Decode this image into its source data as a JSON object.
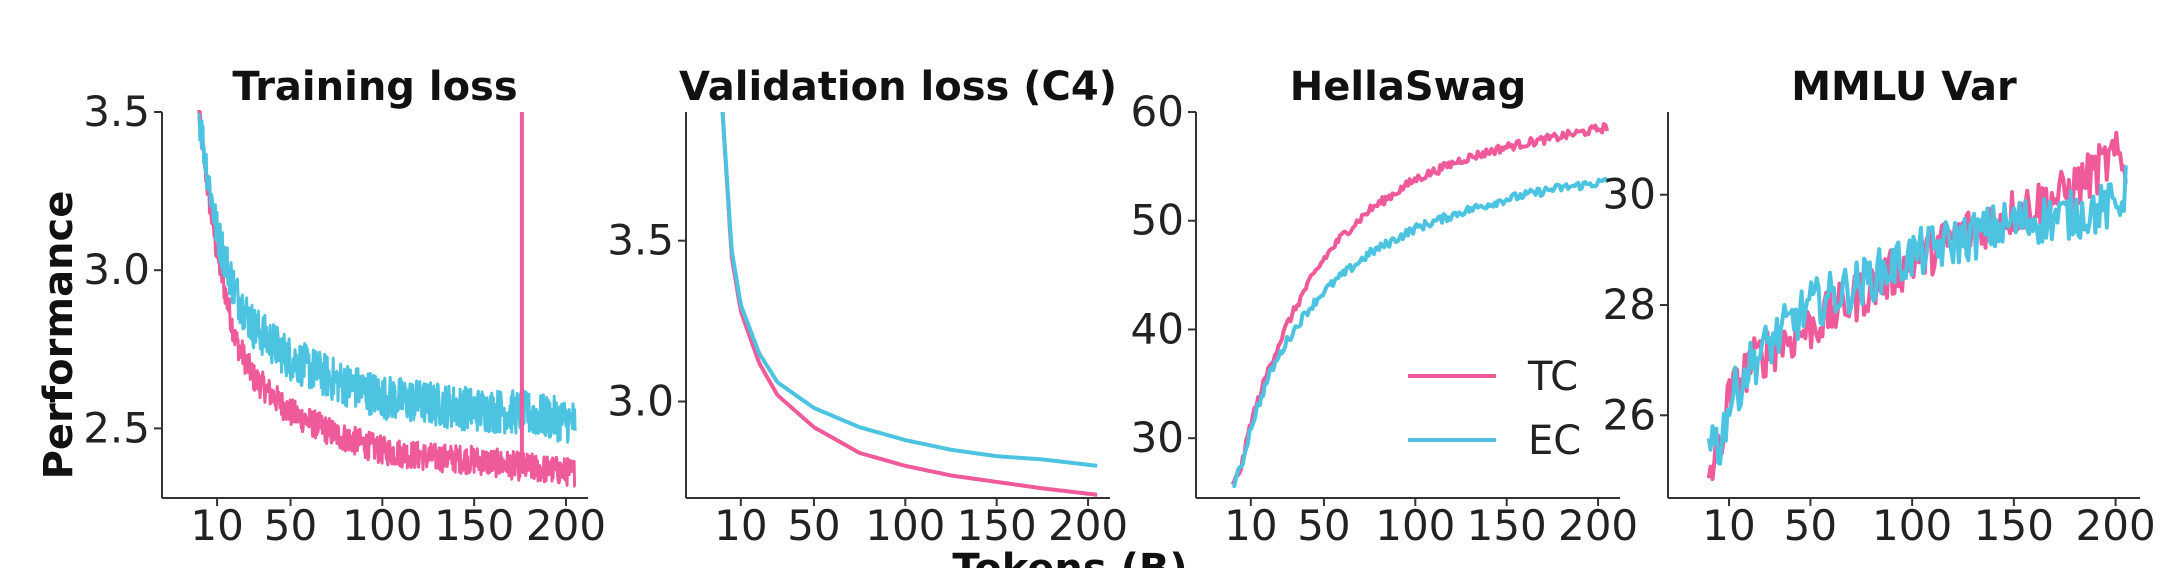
{
  "figure": {
    "ylabel": "Performance",
    "xlabel": "Tokens (B)"
  },
  "legend": [
    {
      "name": "TC",
      "color": "#ef5a9b"
    },
    {
      "name": "EC",
      "color": "#4cc3e0"
    }
  ],
  "chart_data": [
    {
      "type": "line",
      "title": "Training loss",
      "xlim": [
        -20,
        212
      ],
      "ylim": [
        2.28,
        3.5
      ],
      "xticks": [
        10,
        50,
        100,
        150,
        200
      ],
      "yticks": [
        2.5,
        3.0,
        3.5
      ],
      "ytick_labels": [
        "2.5",
        "3.0",
        "3.5"
      ],
      "noise": [
        0.045,
        0.07
      ],
      "spike": {
        "series": "TC",
        "x": 176,
        "y": 3.5
      },
      "series": [
        {
          "name": "TC",
          "x": [
            0,
            5,
            10,
            20,
            30,
            50,
            75,
            100,
            125,
            150,
            175,
            205
          ],
          "y": [
            3.5,
            3.25,
            3.05,
            2.78,
            2.66,
            2.55,
            2.48,
            2.43,
            2.41,
            2.4,
            2.38,
            2.36
          ]
        },
        {
          "name": "EC",
          "x": [
            0,
            5,
            10,
            20,
            30,
            50,
            75,
            100,
            125,
            150,
            175,
            205
          ],
          "y": [
            3.5,
            3.3,
            3.12,
            2.93,
            2.82,
            2.72,
            2.65,
            2.6,
            2.58,
            2.56,
            2.55,
            2.52
          ]
        }
      ]
    },
    {
      "type": "line",
      "title": "Validation loss (C4)",
      "xlim": [
        -20,
        212
      ],
      "ylim": [
        2.7,
        3.9
      ],
      "xticks": [
        10,
        50,
        100,
        150,
        200
      ],
      "yticks": [
        3.0,
        3.5
      ],
      "ytick_labels": [
        "3.0",
        "3.5"
      ],
      "noise": [
        0,
        0
      ],
      "series": [
        {
          "name": "TC",
          "x": [
            0,
            5,
            10,
            20,
            30,
            50,
            75,
            100,
            125,
            150,
            175,
            205
          ],
          "y": [
            3.9,
            3.45,
            3.28,
            3.12,
            3.02,
            2.92,
            2.84,
            2.8,
            2.77,
            2.75,
            2.73,
            2.71
          ]
        },
        {
          "name": "EC",
          "x": [
            0,
            5,
            10,
            20,
            30,
            50,
            75,
            100,
            125,
            150,
            175,
            205
          ],
          "y": [
            3.9,
            3.47,
            3.3,
            3.15,
            3.06,
            2.98,
            2.92,
            2.88,
            2.85,
            2.83,
            2.82,
            2.8
          ]
        }
      ]
    },
    {
      "type": "line",
      "title": "HellaSwag",
      "xlim": [
        -20,
        212
      ],
      "ylim": [
        24.5,
        60
      ],
      "xticks": [
        10,
        50,
        100,
        150,
        200
      ],
      "yticks": [
        30,
        40,
        50,
        60
      ],
      "ytick_labels": [
        "30",
        "40",
        "50",
        "60"
      ],
      "noise": [
        0.4,
        0.4
      ],
      "legend_in_panel": true,
      "series": [
        {
          "name": "TC",
          "x": [
            0,
            5,
            10,
            20,
            30,
            40,
            50,
            60,
            75,
            100,
            125,
            150,
            175,
            205
          ],
          "y": [
            25.5,
            27.5,
            31.5,
            36.5,
            40.5,
            43.8,
            46.5,
            48.6,
            51.0,
            53.8,
            55.6,
            56.8,
            57.6,
            58.6
          ]
        },
        {
          "name": "EC",
          "x": [
            0,
            5,
            10,
            20,
            30,
            40,
            50,
            60,
            75,
            100,
            125,
            150,
            175,
            205
          ],
          "y": [
            25.5,
            27.5,
            31.0,
            35.8,
            39.0,
            41.5,
            43.5,
            45.0,
            47.0,
            49.3,
            50.8,
            52.0,
            52.9,
            53.6
          ]
        }
      ]
    },
    {
      "type": "line",
      "title": "MMLU Var",
      "xlim": [
        -20,
        212
      ],
      "ylim": [
        24.5,
        31.5
      ],
      "xticks": [
        10,
        50,
        100,
        150,
        200
      ],
      "yticks": [
        26,
        28,
        30
      ],
      "ytick_labels": [
        "26",
        "28",
        "30"
      ],
      "noise": [
        0.45,
        0.45
      ],
      "series": [
        {
          "name": "TC",
          "x": [
            0,
            5,
            10,
            20,
            30,
            50,
            75,
            100,
            125,
            150,
            175,
            200,
            205
          ],
          "y": [
            24.9,
            25.4,
            26.3,
            26.9,
            27.2,
            27.6,
            28.2,
            28.8,
            29.3,
            29.7,
            30.0,
            30.7,
            30.4
          ]
        },
        {
          "name": "EC",
          "x": [
            0,
            5,
            10,
            20,
            30,
            50,
            75,
            100,
            125,
            150,
            175,
            200,
            205
          ],
          "y": [
            25.8,
            25.4,
            26.2,
            26.9,
            27.3,
            28.0,
            28.4,
            28.9,
            29.2,
            29.5,
            29.6,
            29.8,
            30.1
          ]
        }
      ]
    }
  ]
}
